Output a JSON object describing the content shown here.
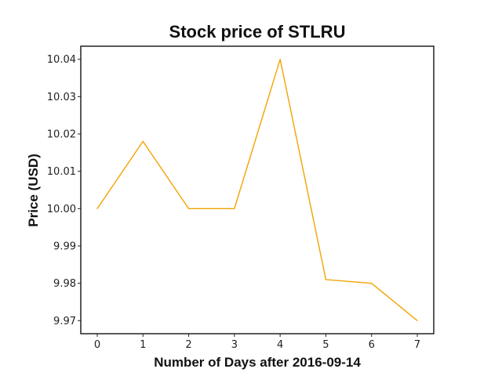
{
  "chart_data": {
    "type": "line",
    "title": "Stock price of STLRU",
    "xlabel": "Number of Days after 2016-09-14",
    "ylabel": "Price (USD)",
    "x": [
      0,
      1,
      2,
      3,
      4,
      5,
      6,
      7
    ],
    "series": [
      {
        "values": [
          10.0,
          10.018,
          10.0,
          10.0,
          10.04,
          9.981,
          9.98,
          9.97
        ],
        "color": "#f4a300"
      }
    ],
    "xticks": [
      "0",
      "1",
      "2",
      "3",
      "4",
      "5",
      "6",
      "7"
    ],
    "yticks": [
      "9.97",
      "9.98",
      "9.99",
      "10.00",
      "10.01",
      "10.02",
      "10.03",
      "10.04"
    ],
    "xlim": [
      -0.36,
      7.36
    ],
    "ylim": [
      9.9665,
      10.0435
    ],
    "grid": false
  }
}
